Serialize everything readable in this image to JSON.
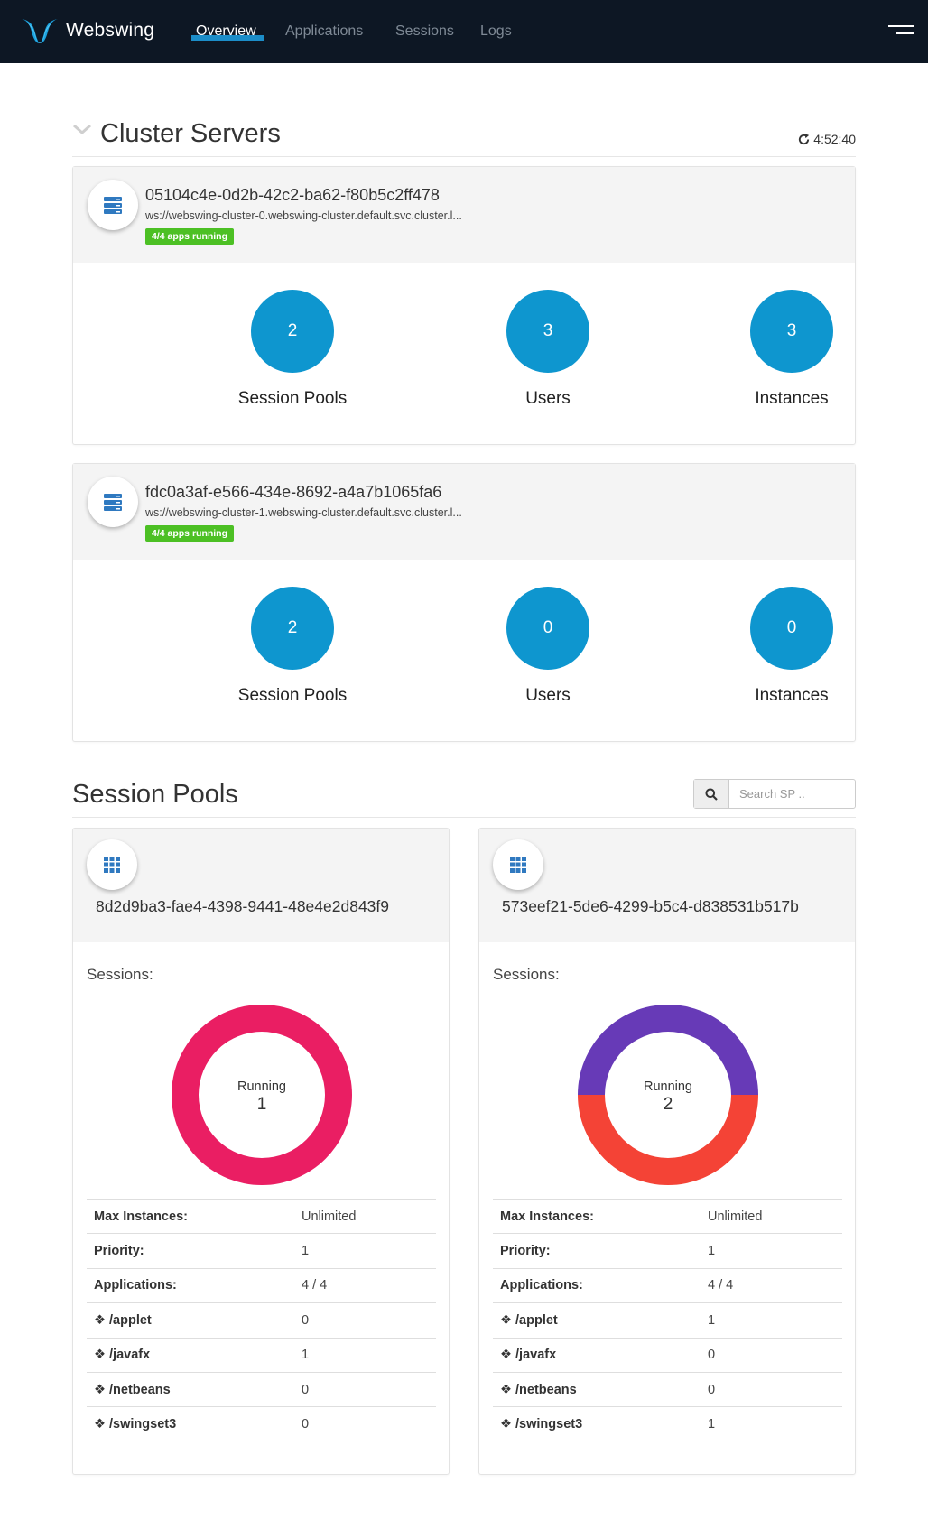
{
  "header": {
    "brand": "Webswing",
    "nav": [
      {
        "label": "Overview",
        "active": true
      },
      {
        "label": "Applications",
        "active": false
      },
      {
        "label": "Sessions",
        "active": false
      },
      {
        "label": "Logs",
        "active": false
      }
    ]
  },
  "cluster": {
    "title": "Cluster Servers",
    "refresh_time": "4:52:40",
    "servers": [
      {
        "id": "05104c4e-0d2b-42c2-ba62-f80b5c2ff478",
        "url": "ws://webswing-cluster-0.webswing-cluster.default.svc.cluster.l...",
        "badge": "4/4 apps running",
        "stats": [
          {
            "value": "2",
            "label": "Session Pools"
          },
          {
            "value": "3",
            "label": "Users"
          },
          {
            "value": "3",
            "label": "Instances"
          }
        ]
      },
      {
        "id": "fdc0a3af-e566-434e-8692-a4a7b1065fa6",
        "url": "ws://webswing-cluster-1.webswing-cluster.default.svc.cluster.l...",
        "badge": "4/4 apps running",
        "stats": [
          {
            "value": "2",
            "label": "Session Pools"
          },
          {
            "value": "0",
            "label": "Users"
          },
          {
            "value": "0",
            "label": "Instances"
          }
        ]
      }
    ]
  },
  "session_pools": {
    "title": "Session Pools",
    "search_placeholder": "Search SP ..",
    "pools": [
      {
        "id": "8d2d9ba3-fae4-4398-9441-48e4e2d843f9",
        "sessions_label": "Sessions:",
        "donut_caption": "Running",
        "donut_value": "1",
        "donut_segments": [
          {
            "value": 1,
            "color": "#ea1e63"
          }
        ],
        "rows": [
          {
            "key": "Max Instances:",
            "value": "Unlimited"
          },
          {
            "key": "Priority:",
            "value": "1"
          },
          {
            "key": "Applications:",
            "value": "4 / 4"
          },
          {
            "key": "❖ /applet",
            "value": "0"
          },
          {
            "key": "❖ /javafx",
            "value": "1"
          },
          {
            "key": "❖ /netbeans",
            "value": "0"
          },
          {
            "key": "❖ /swingset3",
            "value": "0"
          }
        ]
      },
      {
        "id": "573eef21-5de6-4299-b5c4-d838531b517b",
        "sessions_label": "Sessions:",
        "donut_caption": "Running",
        "donut_value": "2",
        "donut_segments": [
          {
            "value": 1,
            "color": "#673ab7"
          },
          {
            "value": 1,
            "color": "#f44336"
          }
        ],
        "rows": [
          {
            "key": "Max Instances:",
            "value": "Unlimited"
          },
          {
            "key": "Priority:",
            "value": "1"
          },
          {
            "key": "Applications:",
            "value": "4 / 4"
          },
          {
            "key": "❖ /applet",
            "value": "1"
          },
          {
            "key": "❖ /javafx",
            "value": "0"
          },
          {
            "key": "❖ /netbeans",
            "value": "0"
          },
          {
            "key": "❖ /swingset3",
            "value": "1"
          }
        ]
      }
    ]
  }
}
